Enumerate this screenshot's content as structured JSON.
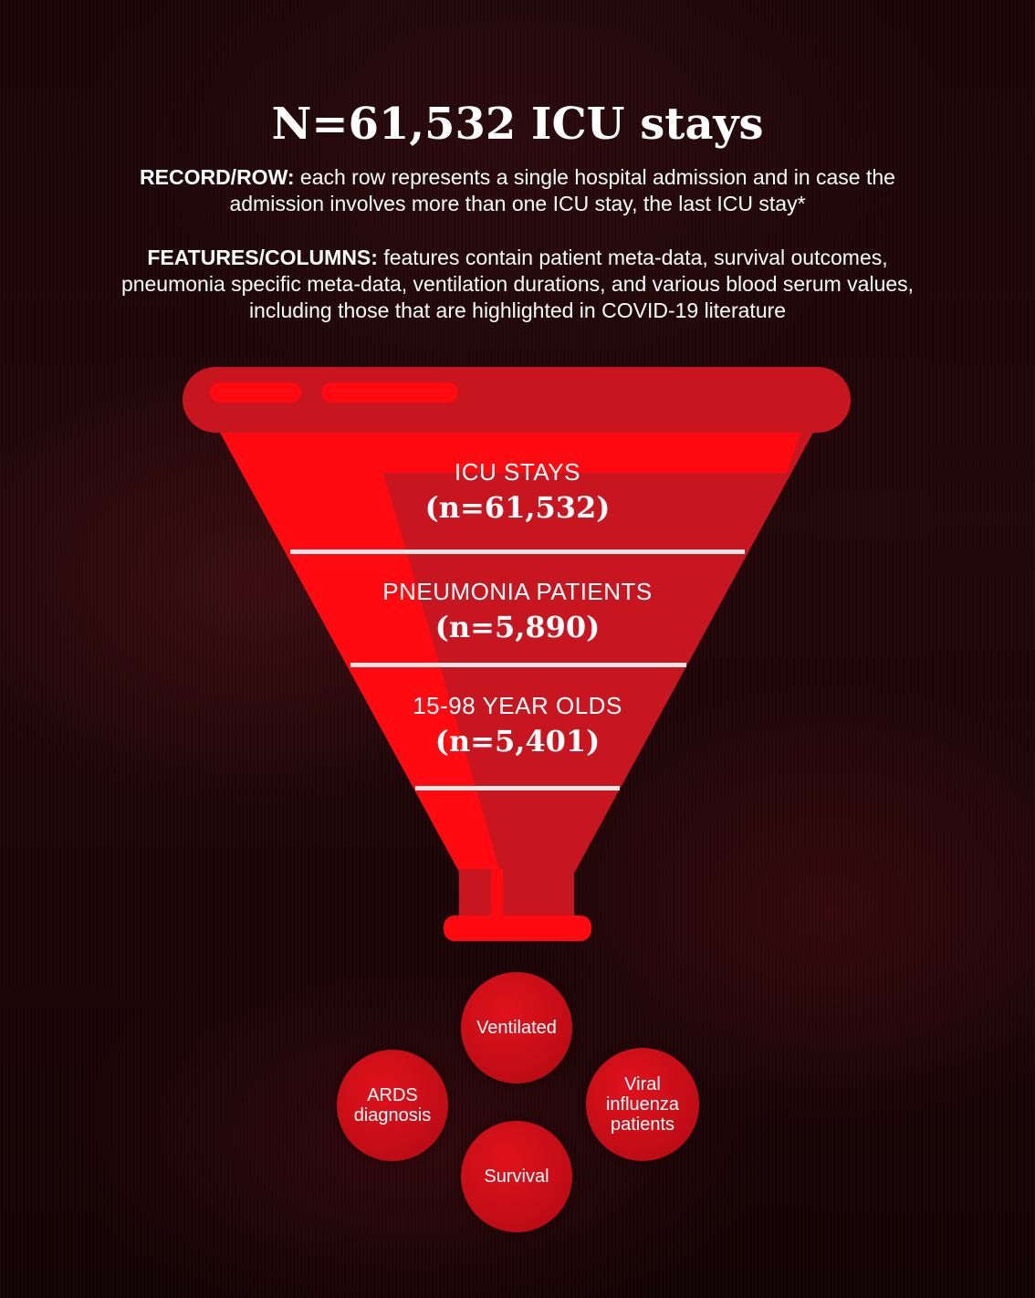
{
  "header": {
    "title": "N=61,532 ICU stays",
    "record_label": "RECORD/ROW:",
    "record_text": " each row represents a single hospital admission and in case the admission involves more than one ICU stay, the last ICU stay*",
    "features_label": "FEATURES/COLUMNS:",
    "features_text": " features contain patient meta-data, survival outcomes, pneumonia specific meta-data, ventilation durations, and various blood serum values, including those that are highlighted in COVID-19 literature"
  },
  "funnel": {
    "stages": [
      {
        "label": "ICU STAYS",
        "count": "(n=61,532)"
      },
      {
        "label": "PNEUMONIA PATIENTS",
        "count": "(n=5,890)"
      },
      {
        "label": "15-98 YEAR OLDS",
        "count": "(n=5,401)"
      }
    ]
  },
  "outcomes": {
    "ventilated": "Ventilated",
    "ards": "ARDS diagnosis",
    "viral": "Viral influenza patients",
    "survival": "Survival"
  },
  "colors": {
    "funnel_red": "#c81620",
    "highlight_red": "#ff0a10",
    "divider": "#e6e6e6"
  }
}
